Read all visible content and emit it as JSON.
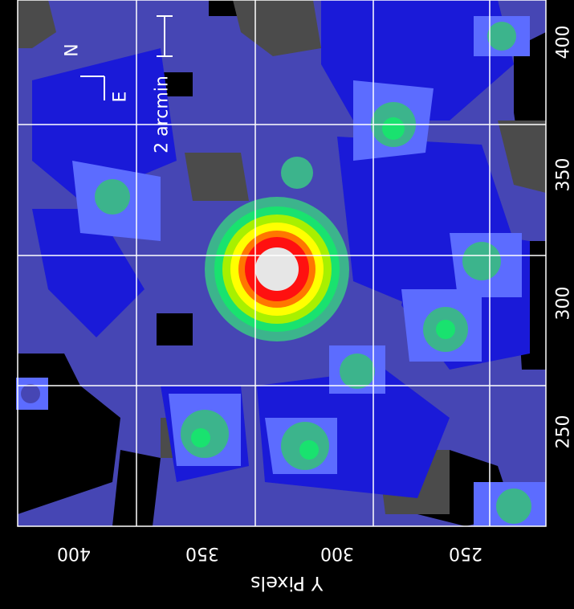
{
  "image": {
    "description_colors": {
      "background": "#000000",
      "level_1": "#4b4b4b",
      "level_2": "#4646b4",
      "level_3": "#1a1ad8",
      "level_4": "#5c6cff",
      "level_5": "#3cb48c",
      "level_6": "#19e26f",
      "level_7": "#a8f000",
      "level_8": "#ffff00",
      "level_9": "#ff7700",
      "level_10": "#ff1010",
      "peak": "#e6e6e6",
      "grid": "#ffffff"
    }
  },
  "axes": {
    "bottom_title": "Y Pixels",
    "bottom_ticks": [
      "400",
      "350",
      "300",
      "250"
    ],
    "right_ticks": [
      "400",
      "350",
      "300",
      "250"
    ]
  },
  "overlay": {
    "scale_label": "2 arcmin",
    "north_label": "N",
    "east_label": "E"
  }
}
